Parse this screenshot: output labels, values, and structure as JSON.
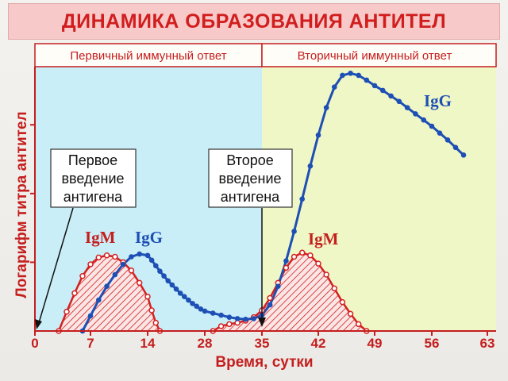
{
  "title": "ДИНАМИКА ОБРАЗОВАНИЯ АНТИТЕЛ",
  "colors": {
    "title": "#d11d1d",
    "title_band": "#f7c9c9",
    "primary_bg": "#c9eef7",
    "secondary_bg": "#eff7c6",
    "igm": "#d42020",
    "igg": "#1d4fb5",
    "axis": "#c41e1e"
  },
  "chart_data": {
    "type": "line",
    "phases": [
      {
        "label": "Первичный иммунный ответ",
        "x_range": [
          0,
          35
        ]
      },
      {
        "label": "Вторичный иммунный ответ",
        "x_range": [
          35,
          63
        ]
      }
    ],
    "xlabel": "Время, сутки",
    "ylabel": "Логарифм титра антител",
    "x_ticks": [
      0,
      7,
      14,
      28,
      35,
      42,
      49,
      56,
      63
    ],
    "xlim": [
      0,
      63
    ],
    "ylim": [
      0,
      3.8
    ],
    "y_ticks_labeled": false,
    "series": [
      {
        "name": "IgM",
        "style": "line-open-markers-hatched-fill",
        "segments": [
          {
            "x": [
              3,
              4,
              5,
              6,
              7,
              8,
              9,
              10,
              11,
              12,
              13,
              14,
              15,
              16,
              17
            ],
            "y": [
              0,
              0.28,
              0.55,
              0.8,
              0.97,
              1.07,
              1.1,
              1.08,
              1.0,
              0.88,
              0.7,
              0.5,
              0.3,
              0.12,
              0
            ]
          },
          {
            "x": [
              29,
              30,
              31,
              32,
              33,
              34,
              35,
              36,
              37,
              38,
              39,
              40,
              41,
              42,
              43,
              44,
              45,
              46,
              47,
              48
            ],
            "y": [
              0,
              0.07,
              0.1,
              0.12,
              0.15,
              0.2,
              0.3,
              0.48,
              0.7,
              0.92,
              1.08,
              1.14,
              1.1,
              0.98,
              0.82,
              0.62,
              0.42,
              0.25,
              0.1,
              0
            ]
          }
        ]
      },
      {
        "name": "IgG",
        "style": "line-filled-markers",
        "x": [
          6,
          7,
          8,
          9,
          10,
          11,
          12,
          13,
          14,
          15,
          16,
          17,
          18,
          19,
          20,
          21,
          22,
          23,
          24,
          25,
          26,
          27,
          28,
          29,
          30,
          31,
          32,
          33,
          34,
          35,
          36,
          37,
          38,
          39,
          40,
          41,
          42,
          43,
          44,
          45,
          46,
          47,
          48,
          49,
          50,
          51,
          52,
          53,
          54,
          55,
          56,
          57,
          58,
          59,
          60
        ],
        "y": [
          0,
          0.22,
          0.45,
          0.65,
          0.82,
          0.97,
          1.08,
          1.12,
          1.1,
          1.03,
          0.95,
          0.87,
          0.8,
          0.73,
          0.67,
          0.61,
          0.55,
          0.5,
          0.45,
          0.4,
          0.36,
          0.32,
          0.29,
          0.26,
          0.23,
          0.2,
          0.18,
          0.17,
          0.18,
          0.23,
          0.38,
          0.65,
          1.02,
          1.45,
          1.92,
          2.4,
          2.85,
          3.25,
          3.55,
          3.72,
          3.75,
          3.72,
          3.65,
          3.57,
          3.5,
          3.42,
          3.34,
          3.25,
          3.16,
          3.07,
          2.98,
          2.88,
          2.78,
          2.67,
          2.56
        ]
      }
    ],
    "series_labels": {
      "igm_primary": "IgM",
      "igg_primary": "IgG",
      "igm_secondary": "IgM",
      "igg_secondary": "IgG"
    },
    "annotations": [
      {
        "id": "first",
        "lines": [
          "Первое",
          "введение",
          "антигена"
        ],
        "points_to_x": 0
      },
      {
        "id": "second",
        "lines": [
          "Второе",
          "введение",
          "антигена"
        ],
        "points_to_x": 35
      }
    ],
    "grid": false
  }
}
